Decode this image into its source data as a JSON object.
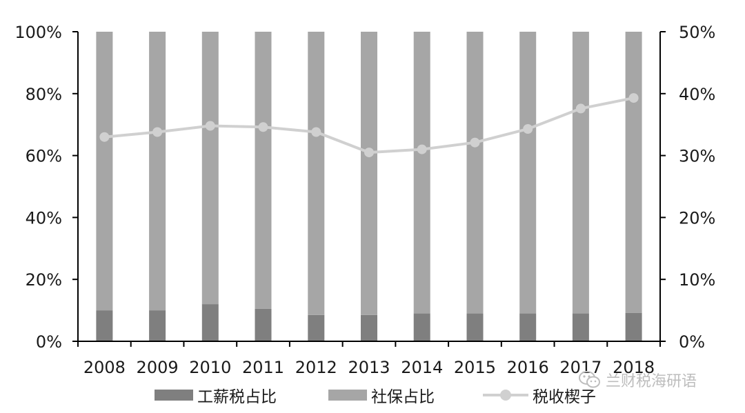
{
  "chart_data": {
    "type": "bar",
    "stacked": true,
    "categories": [
      "2008",
      "2009",
      "2010",
      "2011",
      "2012",
      "2013",
      "2014",
      "2015",
      "2016",
      "2017",
      "2018"
    ],
    "series": [
      {
        "name": "工薪税占比",
        "axis": "left",
        "type": "bar",
        "color": "#7f7f7f",
        "values": [
          10,
          10,
          12,
          10.5,
          8.5,
          8.5,
          9,
          9,
          9,
          9,
          9.2
        ]
      },
      {
        "name": "社保占比",
        "axis": "left",
        "type": "bar",
        "color": "#a6a6a6",
        "values": [
          90,
          90,
          88,
          89.5,
          91.5,
          91.5,
          91,
          91,
          91,
          91,
          90.8
        ]
      },
      {
        "name": "税收楔子",
        "axis": "right",
        "type": "line",
        "color": "#d0d0d0",
        "values": [
          33.0,
          33.8,
          34.8,
          34.6,
          33.8,
          30.5,
          31.0,
          32.1,
          34.3,
          37.6,
          39.3
        ]
      }
    ],
    "y_left": {
      "min": 0,
      "max": 100,
      "ticks": [
        "0%",
        "20%",
        "40%",
        "60%",
        "80%",
        "100%"
      ],
      "tick_values": [
        0,
        20,
        40,
        60,
        80,
        100
      ]
    },
    "y_right": {
      "min": 0,
      "max": 50,
      "ticks": [
        "0%",
        "10%",
        "20%",
        "30%",
        "40%",
        "50%"
      ],
      "tick_values": [
        0,
        10,
        20,
        30,
        40,
        50
      ]
    },
    "grid": false,
    "legend_position": "bottom"
  },
  "legend": {
    "items": [
      {
        "label": "工薪税占比"
      },
      {
        "label": "社保占比"
      },
      {
        "label": "税收楔子"
      }
    ]
  },
  "watermark": {
    "text": "兰财税海研语",
    "icon": "wechat-icon"
  }
}
